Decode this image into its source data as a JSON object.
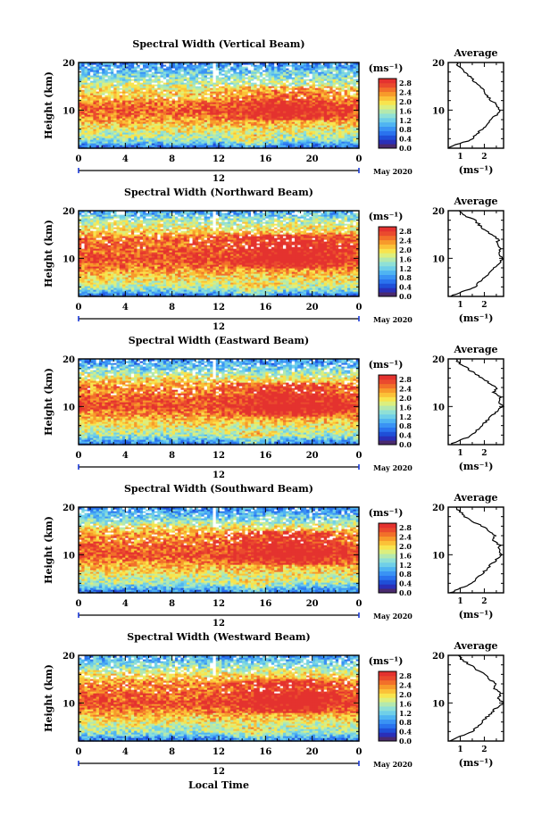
{
  "chart_data": [
    {
      "type": "heatmap",
      "title": "Spectral Width (Vertical Beam)",
      "ylabel": "Height (km)",
      "x_ticks": [
        "0",
        "4",
        "8",
        "12",
        "16",
        "20",
        "0"
      ],
      "xlim_hours": [
        0,
        24
      ],
      "ylim_km": [
        2,
        20
      ],
      "y_ticks": [
        "20",
        "10"
      ],
      "date_marker": "12",
      "date_label": "May 2020",
      "colorbar": {
        "unit": "(ms⁻¹)",
        "ticks": [
          "2.8",
          "2.4",
          "2.0",
          "1.6",
          "1.2",
          "0.8",
          "0.4",
          "0.0"
        ],
        "range": [
          0,
          3.0
        ]
      },
      "average": {
        "title": "Average",
        "x_ticks": [
          "1",
          "2"
        ],
        "xlabel": "(ms⁻¹)",
        "y_ticks": [
          "20",
          "10"
        ],
        "profile": [
          [
            2.0,
            0.5
          ],
          [
            2.5,
            0.7
          ],
          [
            3.0,
            1.0
          ],
          [
            3.5,
            1.3
          ],
          [
            4.0,
            1.5
          ],
          [
            5.0,
            1.7
          ],
          [
            6.0,
            1.9
          ],
          [
            7.0,
            2.1
          ],
          [
            8.0,
            2.3
          ],
          [
            9.0,
            2.5
          ],
          [
            10.0,
            2.65
          ],
          [
            11.0,
            2.55
          ],
          [
            12.0,
            2.3
          ],
          [
            13.0,
            2.1
          ],
          [
            14.0,
            2.0
          ],
          [
            15.0,
            1.8
          ],
          [
            16.0,
            1.6
          ],
          [
            17.0,
            1.4
          ],
          [
            18.0,
            1.2
          ],
          [
            19.0,
            1.0
          ],
          [
            20.0,
            0.8
          ]
        ]
      }
    },
    {
      "type": "heatmap",
      "title": "Spectral Width (Northward Beam)",
      "ylabel": "Height (km)",
      "x_ticks": [
        "0",
        "4",
        "8",
        "12",
        "16",
        "20",
        "0"
      ],
      "xlim_hours": [
        0,
        24
      ],
      "ylim_km": [
        2,
        20
      ],
      "y_ticks": [
        "20",
        "10"
      ],
      "date_marker": "12",
      "date_label": "May 2020",
      "colorbar": {
        "unit": "(ms⁻¹)",
        "ticks": [
          "2.8",
          "2.4",
          "2.0",
          "1.6",
          "1.2",
          "0.8",
          "0.4",
          "0.0"
        ],
        "range": [
          0,
          3.0
        ]
      },
      "average": {
        "title": "Average",
        "x_ticks": [
          "1",
          "2"
        ],
        "xlabel": "(ms⁻¹)",
        "y_ticks": [
          "20",
          "10"
        ],
        "profile": [
          [
            2.0,
            0.6
          ],
          [
            2.5,
            0.8
          ],
          [
            3.0,
            1.1
          ],
          [
            3.5,
            1.4
          ],
          [
            4.0,
            1.6
          ],
          [
            5.0,
            1.8
          ],
          [
            6.0,
            2.0
          ],
          [
            7.0,
            2.2
          ],
          [
            8.0,
            2.4
          ],
          [
            9.0,
            2.6
          ],
          [
            10.0,
            2.8
          ],
          [
            11.0,
            2.6
          ],
          [
            12.0,
            2.7
          ],
          [
            13.0,
            2.5
          ],
          [
            14.0,
            2.6
          ],
          [
            15.0,
            2.3
          ],
          [
            16.0,
            2.0
          ],
          [
            17.0,
            1.8
          ],
          [
            18.0,
            1.6
          ],
          [
            19.0,
            1.2
          ],
          [
            20.0,
            1.0
          ]
        ]
      }
    },
    {
      "type": "heatmap",
      "title": "Spectral Width (Eastward Beam)",
      "ylabel": "Height (km)",
      "x_ticks": [
        "0",
        "4",
        "8",
        "12",
        "16",
        "20",
        "0"
      ],
      "xlim_hours": [
        0,
        24
      ],
      "ylim_km": [
        2,
        20
      ],
      "y_ticks": [
        "20",
        "10"
      ],
      "date_marker": "12",
      "date_label": "May 2020",
      "colorbar": {
        "unit": "(ms⁻¹)",
        "ticks": [
          "2.8",
          "2.4",
          "2.0",
          "1.6",
          "1.2",
          "0.8",
          "0.4",
          "0.0"
        ],
        "range": [
          0,
          3.0
        ]
      },
      "average": {
        "title": "Average",
        "x_ticks": [
          "1",
          "2"
        ],
        "xlabel": "(ms⁻¹)",
        "y_ticks": [
          "20",
          "10"
        ],
        "profile": [
          [
            2.0,
            0.6
          ],
          [
            2.5,
            0.8
          ],
          [
            3.0,
            1.0
          ],
          [
            3.5,
            1.3
          ],
          [
            4.0,
            1.5
          ],
          [
            5.0,
            1.7
          ],
          [
            6.0,
            1.9
          ],
          [
            7.0,
            2.1
          ],
          [
            8.0,
            2.3
          ],
          [
            9.0,
            2.5
          ],
          [
            10.0,
            2.8
          ],
          [
            11.0,
            2.6
          ],
          [
            12.0,
            2.7
          ],
          [
            13.0,
            2.4
          ],
          [
            14.0,
            2.5
          ],
          [
            15.0,
            2.2
          ],
          [
            16.0,
            1.9
          ],
          [
            17.0,
            1.6
          ],
          [
            18.0,
            1.3
          ],
          [
            19.0,
            1.0
          ],
          [
            20.0,
            0.8
          ]
        ]
      }
    },
    {
      "type": "heatmap",
      "title": "Spectral Width (Southward Beam)",
      "ylabel": "Height (km)",
      "x_ticks": [
        "0",
        "4",
        "8",
        "12",
        "16",
        "20",
        "0"
      ],
      "xlim_hours": [
        0,
        24
      ],
      "ylim_km": [
        2,
        20
      ],
      "y_ticks": [
        "20",
        "10"
      ],
      "date_marker": "12",
      "date_label": "May 2020",
      "colorbar": {
        "unit": "(ms⁻¹)",
        "ticks": [
          "2.8",
          "2.4",
          "2.0",
          "1.6",
          "1.2",
          "0.8",
          "0.4",
          "0.0"
        ],
        "range": [
          0,
          3.0
        ]
      },
      "average": {
        "title": "Average",
        "x_ticks": [
          "1",
          "2"
        ],
        "xlabel": "(ms⁻¹)",
        "y_ticks": [
          "20",
          "10"
        ],
        "profile": [
          [
            2.0,
            0.6
          ],
          [
            2.5,
            0.8
          ],
          [
            3.0,
            1.0
          ],
          [
            3.5,
            1.3
          ],
          [
            4.0,
            1.5
          ],
          [
            5.0,
            1.7
          ],
          [
            6.0,
            1.9
          ],
          [
            7.0,
            2.1
          ],
          [
            8.0,
            2.3
          ],
          [
            9.0,
            2.5
          ],
          [
            10.0,
            2.75
          ],
          [
            11.0,
            2.6
          ],
          [
            12.0,
            2.65
          ],
          [
            13.0,
            2.4
          ],
          [
            14.0,
            2.45
          ],
          [
            15.0,
            2.2
          ],
          [
            16.0,
            1.9
          ],
          [
            17.0,
            1.5
          ],
          [
            18.0,
            1.2
          ],
          [
            19.0,
            1.0
          ],
          [
            20.0,
            0.8
          ]
        ]
      }
    },
    {
      "type": "heatmap",
      "title": "Spectral Width (Westward Beam)",
      "ylabel": "Height (km)",
      "x_ticks": [
        "0",
        "4",
        "8",
        "12",
        "16",
        "20",
        "0"
      ],
      "xlim_hours": [
        0,
        24
      ],
      "ylim_km": [
        2,
        20
      ],
      "y_ticks": [
        "20",
        "10"
      ],
      "date_marker": "12",
      "date_label": "May 2020",
      "xlabel": "Local Time",
      "colorbar": {
        "unit": "(ms⁻¹)",
        "ticks": [
          "2.8",
          "2.4",
          "2.0",
          "1.6",
          "1.2",
          "0.8",
          "0.4",
          "0.0"
        ],
        "range": [
          0,
          3.0
        ]
      },
      "average": {
        "title": "Average",
        "x_ticks": [
          "1",
          "2"
        ],
        "xlabel": "(ms⁻¹)",
        "y_ticks": [
          "20",
          "10"
        ],
        "profile": [
          [
            2.0,
            0.6
          ],
          [
            2.5,
            0.8
          ],
          [
            3.0,
            1.0
          ],
          [
            3.5,
            1.3
          ],
          [
            4.0,
            1.5
          ],
          [
            5.0,
            1.7
          ],
          [
            6.0,
            1.9
          ],
          [
            7.0,
            2.1
          ],
          [
            8.0,
            2.3
          ],
          [
            9.0,
            2.5
          ],
          [
            10.0,
            2.8
          ],
          [
            11.0,
            2.6
          ],
          [
            12.0,
            2.7
          ],
          [
            13.0,
            2.4
          ],
          [
            14.0,
            2.5
          ],
          [
            15.0,
            2.2
          ],
          [
            16.0,
            2.0
          ],
          [
            17.0,
            1.7
          ],
          [
            18.0,
            1.4
          ],
          [
            19.0,
            1.1
          ],
          [
            20.0,
            0.9
          ]
        ]
      }
    }
  ]
}
